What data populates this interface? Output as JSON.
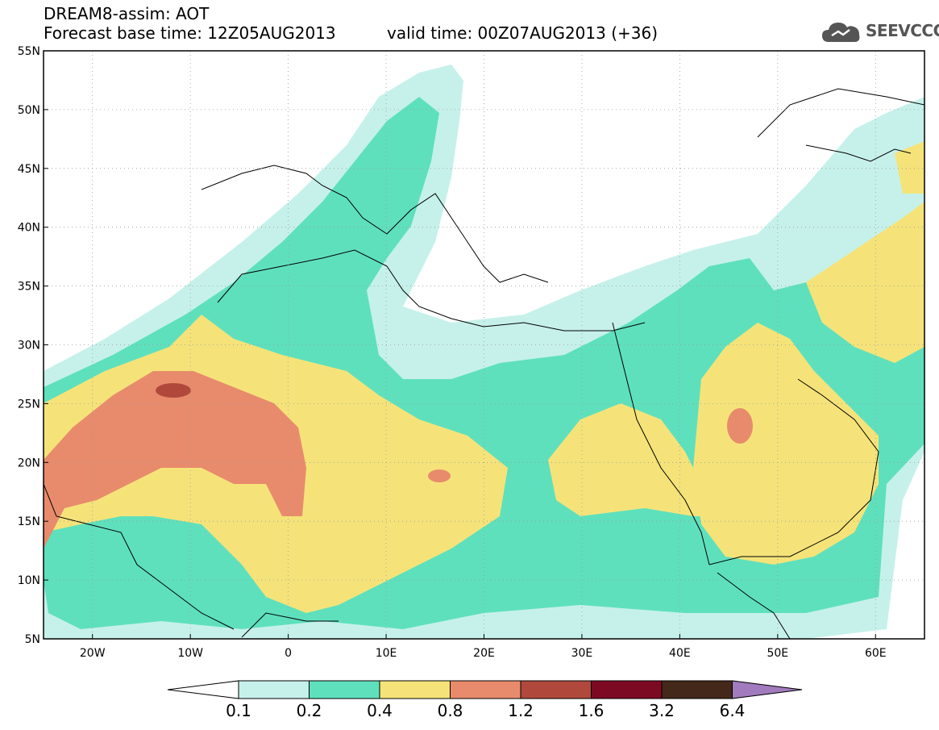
{
  "header": {
    "title": "DREAM8-assim: AOT",
    "base_time": "Forecast base time: 12Z05AUG2013",
    "valid_time": "valid time: 00Z07AUG2013 (+36)"
  },
  "logo": {
    "text": "SEEVCCC",
    "icon": "cloud-logo-icon"
  },
  "map": {
    "lon_range": [
      -25,
      65
    ],
    "lat_range": [
      5,
      55
    ],
    "lat_labels": [
      "5N",
      "10N",
      "15N",
      "20N",
      "25N",
      "30N",
      "35N",
      "40N",
      "45N",
      "50N",
      "55N"
    ],
    "lon_labels": [
      "20W",
      "10W",
      "0",
      "10E",
      "20E",
      "30E",
      "40E",
      "50E",
      "60E"
    ],
    "grid": "dotted"
  },
  "legend": {
    "labels": [
      "0.1",
      "0.2",
      "0.4",
      "0.8",
      "1.2",
      "1.6",
      "3.2",
      "6.4"
    ],
    "colors": [
      "#c6f1ea",
      "#5fe0bd",
      "#f5e37a",
      "#e88b6c",
      "#b0493c",
      "#7d0a23",
      "#44281a"
    ],
    "low_color": "#ffffff",
    "high_color": "#a17bbd"
  }
}
